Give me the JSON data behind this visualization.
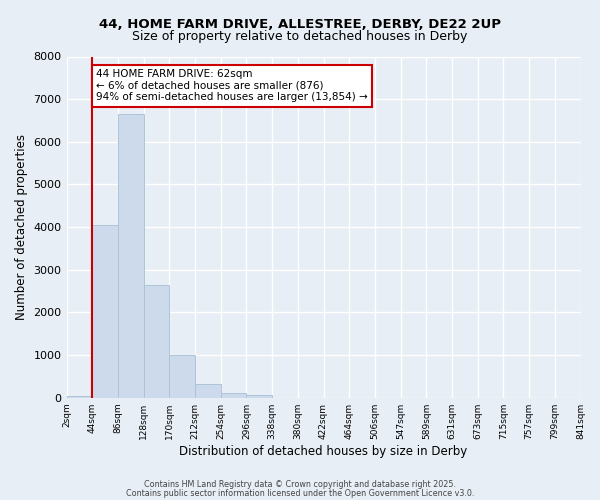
{
  "title_line1": "44, HOME FARM DRIVE, ALLESTREE, DERBY, DE22 2UP",
  "title_line2": "Size of property relative to detached houses in Derby",
  "xlabel": "Distribution of detached houses by size in Derby",
  "ylabel": "Number of detached properties",
  "bar_values": [
    50,
    4050,
    6650,
    2650,
    1000,
    330,
    110,
    60,
    0,
    0,
    0,
    0,
    0,
    0,
    0,
    0,
    0,
    0,
    0,
    0
  ],
  "bin_labels": [
    "2sqm",
    "44sqm",
    "86sqm",
    "128sqm",
    "170sqm",
    "212sqm",
    "254sqm",
    "296sqm",
    "338sqm",
    "380sqm",
    "422sqm",
    "464sqm",
    "506sqm",
    "547sqm",
    "589sqm",
    "631sqm",
    "673sqm",
    "715sqm",
    "757sqm",
    "799sqm",
    "841sqm"
  ],
  "bar_color": "#ccdaeb",
  "bar_edge_color": "#adc4d8",
  "vline_color": "#cc0000",
  "ylim": [
    0,
    8000
  ],
  "yticks": [
    0,
    1000,
    2000,
    3000,
    4000,
    5000,
    6000,
    7000,
    8000
  ],
  "annotation_text": "44 HOME FARM DRIVE: 62sqm\n← 6% of detached houses are smaller (876)\n94% of semi-detached houses are larger (13,854) →",
  "annotation_box_color": "#ffffff",
  "annotation_box_edge": "#cc0000",
  "footnote1": "Contains HM Land Registry data © Crown copyright and database right 2025.",
  "footnote2": "Contains public sector information licensed under the Open Government Licence v3.0.",
  "bg_color": "#e8eef5",
  "grid_color": "#ffffff"
}
